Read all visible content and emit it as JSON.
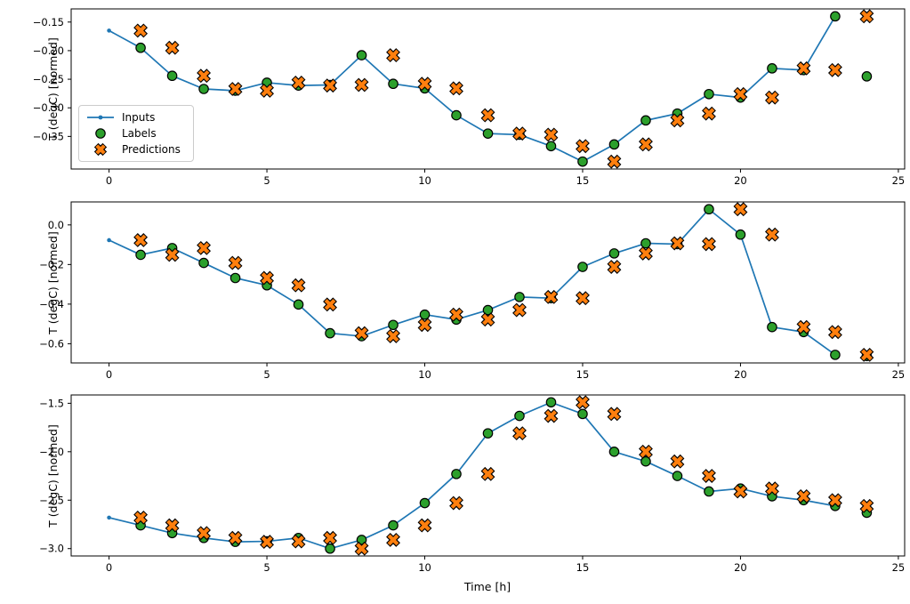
{
  "figure": {
    "xlabel": "Time [h]",
    "ylabel": "T (degC) [normed]",
    "background": "#ffffff",
    "colors": {
      "inputs_line": "#1f77b4",
      "labels_marker": "#2ca02c",
      "predictions_marker": "#ff7f0e",
      "marker_edge": "#000000",
      "axis": "#000000",
      "legend_border": "#cccccc"
    },
    "legend": {
      "items": [
        {
          "label": "Inputs",
          "marker": "line-with-dot"
        },
        {
          "label": "Labels",
          "marker": "filled-circle"
        },
        {
          "label": "Predictions",
          "marker": "thick-x"
        }
      ],
      "position": "upper-left-of-first-subplot"
    }
  },
  "chart_data": [
    {
      "type": "line",
      "subplot": 1,
      "ylabel": "T (degC) [normed]",
      "xlim": [
        -1.2,
        25.2
      ],
      "ylim": [
        -0.407,
        -0.127
      ],
      "xticks": [
        0,
        5,
        10,
        15,
        20,
        25
      ],
      "xtick_labels": [
        "0",
        "5",
        "10",
        "15",
        "20",
        "25"
      ],
      "yticks": [
        -0.15,
        -0.2,
        -0.25,
        -0.3,
        -0.35
      ],
      "ytick_labels": [
        "−0.15",
        "−0.20",
        "−0.25",
        "−0.30",
        "−0.35"
      ],
      "grid": false,
      "legend_visible": true,
      "series": [
        {
          "name": "Inputs",
          "style": "line-with-dots",
          "x": [
            0,
            1,
            2,
            3,
            4,
            5,
            6,
            7,
            8,
            9,
            10,
            11,
            12,
            13,
            14,
            15,
            16,
            17,
            18,
            19,
            20,
            21,
            22,
            23
          ],
          "y": [
            -0.165,
            -0.195,
            -0.244,
            -0.267,
            -0.27,
            -0.256,
            -0.261,
            -0.26,
            -0.208,
            -0.258,
            -0.266,
            -0.313,
            -0.345,
            -0.347,
            -0.367,
            -0.394,
            -0.364,
            -0.322,
            -0.31,
            -0.276,
            -0.282,
            -0.231,
            -0.234,
            -0.14
          ]
        },
        {
          "name": "Labels",
          "style": "scatter-circle",
          "x": [
            1,
            2,
            3,
            4,
            5,
            6,
            7,
            8,
            9,
            10,
            11,
            12,
            13,
            14,
            15,
            16,
            17,
            18,
            19,
            20,
            21,
            22,
            23,
            24
          ],
          "y": [
            -0.195,
            -0.244,
            -0.267,
            -0.27,
            -0.256,
            -0.261,
            -0.26,
            -0.208,
            -0.258,
            -0.266,
            -0.313,
            -0.345,
            -0.347,
            -0.367,
            -0.394,
            -0.364,
            -0.322,
            -0.31,
            -0.276,
            -0.282,
            -0.231,
            -0.234,
            -0.14,
            -0.245
          ]
        },
        {
          "name": "Predictions",
          "style": "scatter-x",
          "x": [
            1,
            2,
            3,
            4,
            5,
            6,
            7,
            8,
            9,
            10,
            11,
            12,
            13,
            14,
            15,
            16,
            17,
            18,
            19,
            20,
            21,
            22,
            23,
            24
          ],
          "y": [
            -0.165,
            -0.195,
            -0.244,
            -0.267,
            -0.27,
            -0.256,
            -0.261,
            -0.26,
            -0.208,
            -0.258,
            -0.266,
            -0.313,
            -0.345,
            -0.347,
            -0.367,
            -0.394,
            -0.364,
            -0.322,
            -0.31,
            -0.276,
            -0.282,
            -0.231,
            -0.234,
            -0.14
          ]
        }
      ]
    },
    {
      "type": "line",
      "subplot": 2,
      "ylabel": "T (degC) [normed]",
      "xlim": [
        -1.2,
        25.2
      ],
      "ylim": [
        -0.697,
        0.116
      ],
      "xticks": [
        0,
        5,
        10,
        15,
        20,
        25
      ],
      "xtick_labels": [
        "0",
        "5",
        "10",
        "15",
        "20",
        "25"
      ],
      "yticks": [
        0.0,
        -0.2,
        -0.4,
        -0.6
      ],
      "ytick_labels": [
        "0.0",
        "−0.2",
        "−0.4",
        "−0.6"
      ],
      "grid": false,
      "legend_visible": false,
      "series": [
        {
          "name": "Inputs",
          "style": "line-with-dots",
          "x": [
            0,
            1,
            2,
            3,
            4,
            5,
            6,
            7,
            8,
            9,
            10,
            11,
            12,
            13,
            14,
            15,
            16,
            17,
            18,
            19,
            20,
            21,
            22,
            23
          ],
          "y": [
            -0.077,
            -0.151,
            -0.117,
            -0.192,
            -0.268,
            -0.305,
            -0.402,
            -0.547,
            -0.562,
            -0.505,
            -0.453,
            -0.478,
            -0.43,
            -0.364,
            -0.37,
            -0.212,
            -0.144,
            -0.093,
            -0.097,
            0.079,
            -0.049,
            -0.516,
            -0.541,
            -0.656
          ]
        },
        {
          "name": "Labels",
          "style": "scatter-circle",
          "x": [
            1,
            2,
            3,
            4,
            5,
            6,
            7,
            8,
            9,
            10,
            11,
            12,
            13,
            14,
            15,
            16,
            17,
            18,
            19,
            20,
            21,
            22,
            23,
            24
          ],
          "y": [
            -0.151,
            -0.117,
            -0.192,
            -0.268,
            -0.305,
            -0.402,
            -0.547,
            -0.562,
            -0.505,
            -0.453,
            -0.478,
            -0.43,
            -0.364,
            -0.37,
            -0.212,
            -0.144,
            -0.093,
            -0.097,
            0.079,
            -0.049,
            -0.516,
            -0.541,
            -0.656,
            -0.662
          ]
        },
        {
          "name": "Predictions",
          "style": "scatter-x",
          "x": [
            1,
            2,
            3,
            4,
            5,
            6,
            7,
            8,
            9,
            10,
            11,
            12,
            13,
            14,
            15,
            16,
            17,
            18,
            19,
            20,
            21,
            22,
            23,
            24
          ],
          "y": [
            -0.077,
            -0.151,
            -0.117,
            -0.192,
            -0.268,
            -0.305,
            -0.402,
            -0.547,
            -0.562,
            -0.505,
            -0.453,
            -0.478,
            -0.43,
            -0.364,
            -0.37,
            -0.212,
            -0.144,
            -0.093,
            -0.097,
            0.079,
            -0.049,
            -0.516,
            -0.541,
            -0.656
          ]
        }
      ]
    },
    {
      "type": "line",
      "subplot": 3,
      "ylabel": "T (degC) [normed]",
      "xlabel": "Time [h]",
      "xlim": [
        -1.2,
        25.2
      ],
      "ylim": [
        -3.076,
        -1.414
      ],
      "xticks": [
        0,
        5,
        10,
        15,
        20,
        25
      ],
      "xtick_labels": [
        "0",
        "5",
        "10",
        "15",
        "20",
        "25"
      ],
      "yticks": [
        -1.5,
        -2.0,
        -2.5,
        -3.0
      ],
      "ytick_labels": [
        "−1.5",
        "−2.0",
        "−2.5",
        "−3.0"
      ],
      "grid": false,
      "legend_visible": false,
      "series": [
        {
          "name": "Inputs",
          "style": "line-with-dots",
          "x": [
            0,
            1,
            2,
            3,
            4,
            5,
            6,
            7,
            8,
            9,
            10,
            11,
            12,
            13,
            14,
            15,
            16,
            17,
            18,
            19,
            20,
            21,
            22,
            23
          ],
          "y": [
            -2.68,
            -2.76,
            -2.84,
            -2.89,
            -2.93,
            -2.925,
            -2.89,
            -3.0,
            -2.91,
            -2.76,
            -2.53,
            -2.23,
            -1.81,
            -1.63,
            -1.49,
            -1.61,
            -2.0,
            -2.1,
            -2.25,
            -2.41,
            -2.38,
            -2.46,
            -2.5,
            -2.56
          ]
        },
        {
          "name": "Labels",
          "style": "scatter-circle",
          "x": [
            1,
            2,
            3,
            4,
            5,
            6,
            7,
            8,
            9,
            10,
            11,
            12,
            13,
            14,
            15,
            16,
            17,
            18,
            19,
            20,
            21,
            22,
            23,
            24
          ],
          "y": [
            -2.76,
            -2.84,
            -2.89,
            -2.93,
            -2.925,
            -2.89,
            -3.0,
            -2.91,
            -2.76,
            -2.53,
            -2.23,
            -1.81,
            -1.63,
            -1.49,
            -1.61,
            -2.0,
            -2.1,
            -2.25,
            -2.41,
            -2.38,
            -2.46,
            -2.5,
            -2.56,
            -2.63
          ]
        },
        {
          "name": "Predictions",
          "style": "scatter-x",
          "x": [
            1,
            2,
            3,
            4,
            5,
            6,
            7,
            8,
            9,
            10,
            11,
            12,
            13,
            14,
            15,
            16,
            17,
            18,
            19,
            20,
            21,
            22,
            23,
            24
          ],
          "y": [
            -2.68,
            -2.76,
            -2.84,
            -2.89,
            -2.93,
            -2.925,
            -2.89,
            -3.0,
            -2.91,
            -2.76,
            -2.53,
            -2.23,
            -1.81,
            -1.63,
            -1.49,
            -1.61,
            -2.0,
            -2.1,
            -2.25,
            -2.41,
            -2.38,
            -2.46,
            -2.5,
            -2.56
          ]
        }
      ]
    }
  ]
}
